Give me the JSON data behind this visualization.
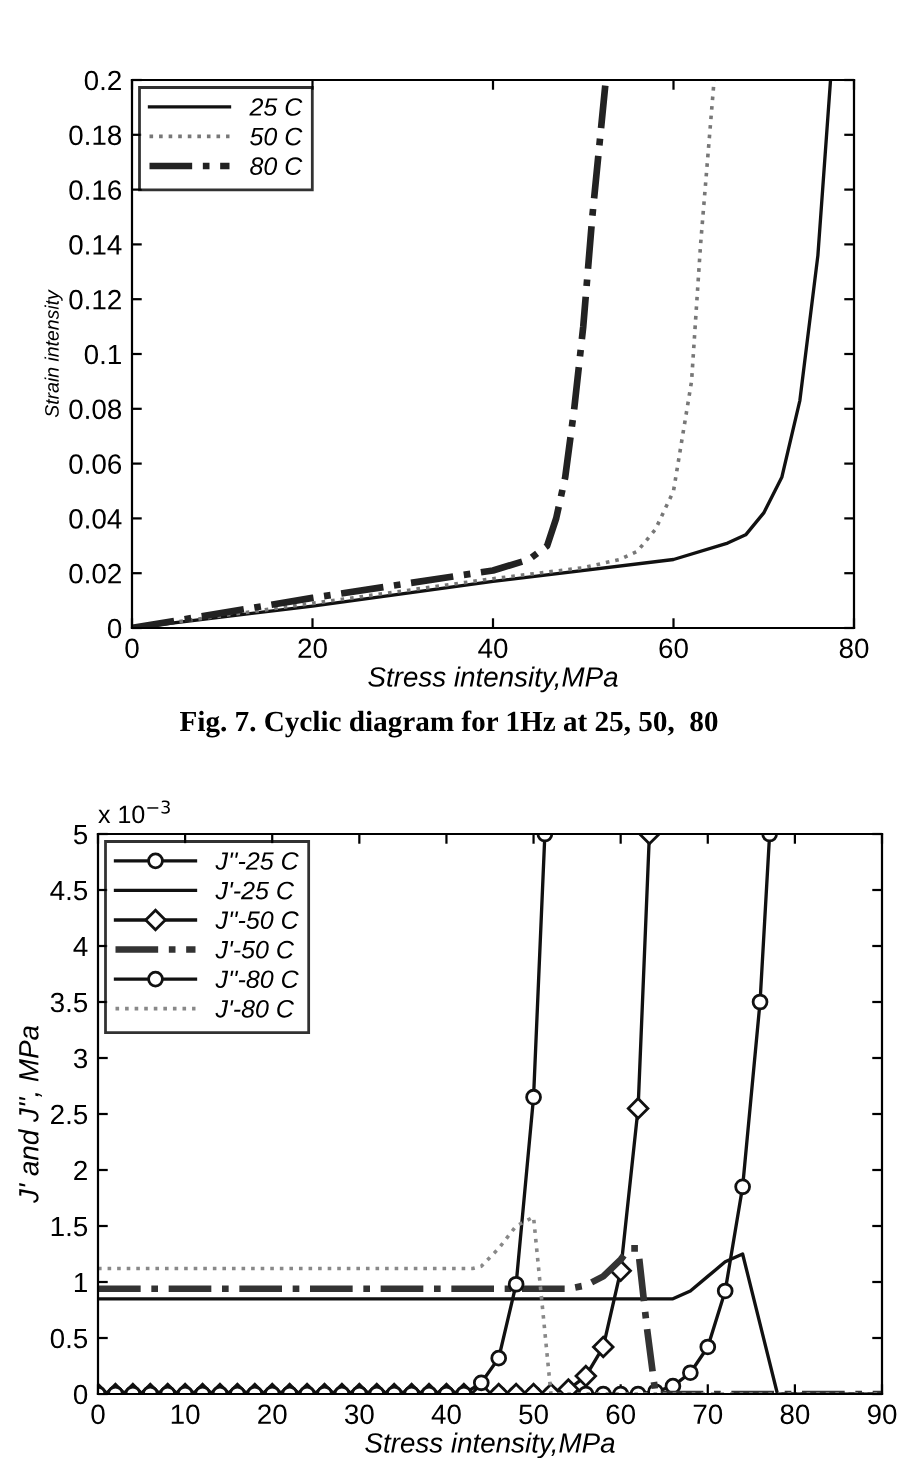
{
  "chart_data": [
    {
      "type": "line",
      "xlabel": "Stress intensity,MPa",
      "ylabel": "Strain intensity",
      "annotations": [
        "Fig. 7. Cyclic diagram for 1Hz at 25, 50,  80"
      ],
      "xlim": [
        0,
        80
      ],
      "xticks": [
        0,
        20,
        40,
        60,
        80
      ],
      "ylim": [
        0,
        0.2
      ],
      "yticks": [
        0,
        0.02,
        0.04,
        0.06,
        0.08,
        0.1,
        0.12,
        0.14,
        0.16,
        0.18,
        0.2
      ],
      "grid": false,
      "legend": "top left",
      "marker": "none",
      "series": [
        {
          "name": "25 C",
          "color": "#111111",
          "line_style": "solid",
          "x": [
            0,
            20,
            40,
            60,
            66,
            68,
            70,
            72,
            74,
            76,
            77.4
          ],
          "values": [
            0,
            0.008,
            0.017,
            0.025,
            0.031,
            0.034,
            0.042,
            0.055,
            0.083,
            0.136,
            0.2
          ]
        },
        {
          "name": "50 C",
          "color": "#777777",
          "line_style": "dotted",
          "x": [
            0,
            20,
            40,
            50,
            54,
            56,
            58,
            60,
            62,
            63,
            64.5
          ],
          "values": [
            0,
            0.009,
            0.018,
            0.022,
            0.025,
            0.028,
            0.036,
            0.05,
            0.09,
            0.14,
            0.2
          ]
        },
        {
          "name": "80 C",
          "color": "#222222",
          "line_style": "dashdot",
          "x": [
            0,
            20,
            40,
            44,
            46,
            47,
            48,
            49,
            50,
            51,
            52.5
          ],
          "values": [
            0,
            0.011,
            0.021,
            0.025,
            0.03,
            0.04,
            0.055,
            0.08,
            0.11,
            0.15,
            0.2
          ]
        }
      ]
    },
    {
      "type": "line",
      "xlabel": "Stress intensity,MPa",
      "ylabel": "J' and J'', MPa",
      "annotations": [
        "x 10$^{−3}$"
      ],
      "xlim": [
        0,
        90
      ],
      "xticks": [
        0,
        10,
        20,
        30,
        40,
        50,
        60,
        70,
        80,
        90
      ],
      "ylim": [
        0,
        5
      ],
      "yticks": [
        0,
        0.5,
        1,
        1.5,
        2,
        2.5,
        3,
        3.5,
        4,
        4.5,
        5
      ],
      "grid": false,
      "legend": "top left",
      "series": [
        {
          "name": "J''-25 C",
          "color": "#111111",
          "line_style": "solid",
          "marker": "circle",
          "x": [
            0,
            2,
            4,
            6,
            8,
            10,
            12,
            14,
            16,
            18,
            20,
            22,
            24,
            26,
            28,
            30,
            32,
            34,
            36,
            38,
            40,
            42,
            44,
            46,
            48,
            50,
            52,
            54,
            56,
            58,
            60,
            62,
            64,
            66,
            68,
            70,
            72,
            74,
            76,
            77.1
          ],
          "values": [
            0,
            0,
            0,
            0,
            0,
            0,
            0,
            0,
            0,
            0,
            0,
            0,
            0,
            0,
            0,
            0,
            0,
            0,
            0,
            0,
            0,
            0,
            0,
            0,
            0,
            0,
            0,
            0,
            0,
            0,
            0,
            0,
            0.02,
            0.07,
            0.19,
            0.42,
            0.92,
            1.85,
            3.5,
            5
          ]
        },
        {
          "name": "J'-25 C",
          "color": "#111111",
          "line_style": "solid",
          "marker": "none",
          "x": [
            0,
            66,
            68,
            70,
            72,
            74,
            78,
            90
          ],
          "values": [
            0.85,
            0.85,
            0.92,
            1.05,
            1.18,
            1.25,
            0,
            0
          ]
        },
        {
          "name": "J''-50 C",
          "color": "#111111",
          "line_style": "solid",
          "marker": "diamond",
          "x": [
            0,
            2,
            4,
            6,
            8,
            10,
            12,
            14,
            16,
            18,
            20,
            22,
            24,
            26,
            28,
            30,
            32,
            34,
            36,
            38,
            40,
            42,
            44,
            46,
            48,
            50,
            52,
            54,
            56,
            58,
            60,
            62,
            63.3
          ],
          "values": [
            0,
            0,
            0,
            0,
            0,
            0,
            0,
            0,
            0,
            0,
            0,
            0,
            0,
            0,
            0,
            0,
            0,
            0,
            0,
            0,
            0,
            0,
            0,
            0,
            0,
            0,
            0,
            0.04,
            0.16,
            0.42,
            1.1,
            2.55,
            5
          ]
        },
        {
          "name": "J'-50 C",
          "color": "#333333",
          "line_style": "dashdot",
          "marker": "none",
          "x": [
            0,
            54,
            56,
            58,
            60,
            61,
            62,
            63,
            64,
            90
          ],
          "values": [
            0.94,
            0.94,
            0.97,
            1.05,
            1.2,
            1.3,
            1.3,
            0.6,
            0,
            0
          ]
        },
        {
          "name": "J''-80 C",
          "color": "#111111",
          "line_style": "solid",
          "marker": "circle",
          "x": [
            0,
            2,
            4,
            6,
            8,
            10,
            12,
            14,
            16,
            18,
            20,
            22,
            24,
            26,
            28,
            30,
            32,
            34,
            36,
            38,
            40,
            42,
            44,
            46,
            48,
            50,
            51.3
          ],
          "values": [
            0,
            0,
            0,
            0,
            0,
            0,
            0,
            0,
            0,
            0,
            0,
            0,
            0,
            0,
            0,
            0,
            0,
            0,
            0,
            0,
            0,
            0,
            0.1,
            0.32,
            0.98,
            2.65,
            5
          ]
        },
        {
          "name": "J'-80 C",
          "color": "#888888",
          "line_style": "dotted",
          "marker": "none",
          "x": [
            0,
            43,
            44,
            46,
            48,
            50,
            52,
            90
          ],
          "values": [
            1.12,
            1.12,
            1.14,
            1.3,
            1.5,
            1.58,
            0,
            0
          ]
        }
      ]
    }
  ]
}
